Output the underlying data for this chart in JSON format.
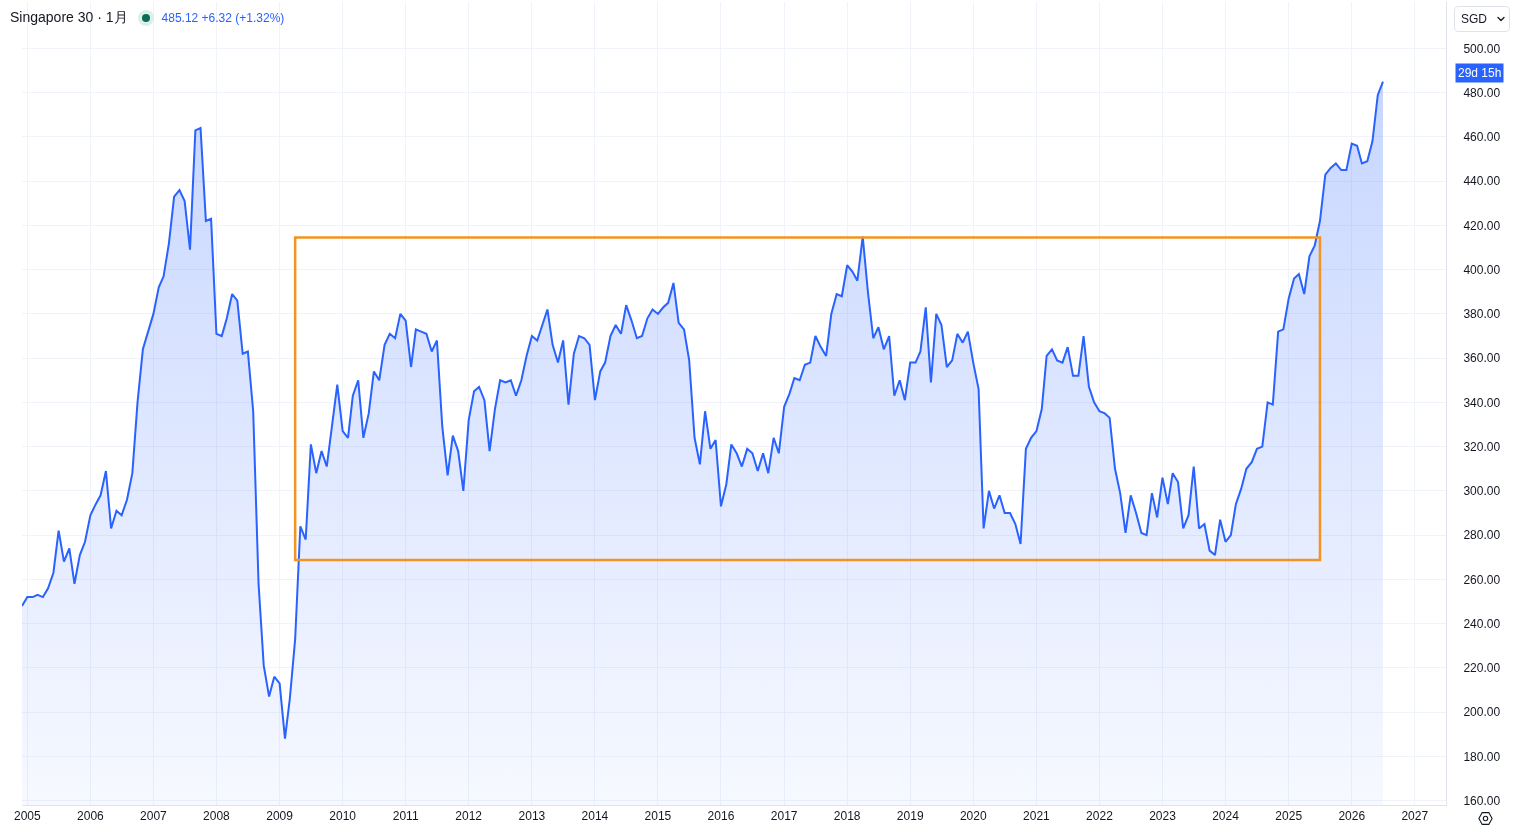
{
  "chart_data": {
    "type": "area",
    "title": "Singapore 30 · 1月",
    "subtitle": "485.12 +6.32 (+1.32%)",
    "ylabel": "SGD",
    "annotations": [
      "29d 15h"
    ],
    "x": [
      "2004-12",
      "2005-01",
      "2005-02",
      "2005-03",
      "2005-04",
      "2005-05",
      "2005-06",
      "2005-07",
      "2005-08",
      "2005-09",
      "2005-10",
      "2005-11",
      "2005-12",
      "2006-01",
      "2006-02",
      "2006-03",
      "2006-04",
      "2006-05",
      "2006-06",
      "2006-07",
      "2006-08",
      "2006-09",
      "2006-10",
      "2006-11",
      "2007-01",
      "2007-02",
      "2007-03",
      "2007-04",
      "2007-05",
      "2007-06",
      "2007-07",
      "2007-08",
      "2007-09",
      "2007-10",
      "2007-11",
      "2007-12",
      "2008-01",
      "2008-02",
      "2008-03",
      "2008-04",
      "2008-05",
      "2008-06",
      "2008-07",
      "2008-08",
      "2008-09",
      "2008-10",
      "2008-11",
      "2008-12",
      "2009-01",
      "2009-02",
      "2009-03",
      "2009-04",
      "2009-05",
      "2009-06",
      "2009-07",
      "2009-08",
      "2009-09",
      "2009-10",
      "2009-12",
      "2010-01",
      "2010-02",
      "2010-03",
      "2010-04",
      "2010-05",
      "2010-06",
      "2010-07",
      "2010-08",
      "2010-09",
      "2010-10",
      "2010-11",
      "2010-12",
      "2011-01",
      "2011-02",
      "2011-03",
      "2011-04",
      "2011-05",
      "2011-06",
      "2011-07",
      "2011-08",
      "2011-09",
      "2011-10",
      "2011-11",
      "2011-12",
      "2012-01",
      "2012-02",
      "2012-03",
      "2012-04",
      "2012-05",
      "2012-06",
      "2012-07",
      "2012-08",
      "2012-09",
      "2012-10",
      "2012-11",
      "2012-12",
      "2013-01",
      "2013-02",
      "2013-04",
      "2013-05",
      "2013-06",
      "2013-07",
      "2013-08",
      "2013-09",
      "2013-10",
      "2013-11",
      "2013-12",
      "2014-01",
      "2014-02",
      "2014-03",
      "2014-04",
      "2014-05",
      "2014-06",
      "2014-07",
      "2014-08",
      "2014-09",
      "2014-10",
      "2014-11",
      "2014-12",
      "2015-01",
      "2015-02",
      "2015-03",
      "2015-04",
      "2015-05",
      "2015-06",
      "2015-07",
      "2015-08",
      "2015-09",
      "2015-10",
      "2015-11",
      "2015-12",
      "2016-01",
      "2016-02",
      "2016-03",
      "2016-04",
      "2016-05",
      "2016-06",
      "2016-07",
      "2016-08",
      "2016-09",
      "2016-10",
      "2016-11",
      "2016-12",
      "2017-01",
      "2017-02",
      "2017-03",
      "2017-04",
      "2017-05",
      "2017-06",
      "2017-07",
      "2017-08",
      "2017-09",
      "2017-10",
      "2017-11",
      "2017-12",
      "2018-01",
      "2018-02",
      "2018-03",
      "2018-04",
      "2018-05",
      "2018-06",
      "2018-07",
      "2018-08",
      "2018-09",
      "2018-10",
      "2018-11",
      "2018-12",
      "2019-01",
      "2019-02",
      "2019-03",
      "2019-04",
      "2019-05",
      "2019-06",
      "2019-07",
      "2019-08",
      "2019-09",
      "2019-10",
      "2019-11",
      "2019-12",
      "2020-01",
      "2020-02",
      "2020-03",
      "2020-04",
      "2020-05",
      "2020-06",
      "2020-07",
      "2020-08",
      "2020-09",
      "2020-10",
      "2020-11",
      "2020-12",
      "2021-01",
      "2021-02",
      "2021-03",
      "2021-04",
      "2021-05",
      "2021-06",
      "2021-07",
      "2021-08",
      "2021-09",
      "2021-10",
      "2021-11",
      "2021-12",
      "2022-01",
      "2022-02",
      "2022-03",
      "2022-04",
      "2022-05",
      "2022-06",
      "2022-07",
      "2022-08",
      "2022-09",
      "2022-10",
      "2022-11",
      "2022-12",
      "2023-01",
      "2023-02",
      "2023-03",
      "2023-04",
      "2023-05",
      "2023-06",
      "2023-07",
      "2023-08",
      "2023-09",
      "2023-10",
      "2023-11",
      "2023-12",
      "2024-01",
      "2024-02",
      "2024-03",
      "2024-04",
      "2024-05",
      "2024-06",
      "2024-07",
      "2024-08",
      "2024-09",
      "2024-10",
      "2024-11",
      "2024-12",
      "2025-01",
      "2025-02",
      "2025-03",
      "2025-04",
      "2025-05",
      "2025-06",
      "2025-07",
      "2025-08",
      "2025-09",
      "2025-10",
      "2025-11",
      "2025-12",
      "2026-01",
      "2026-02",
      "2026-03",
      "2026-04",
      "2026-05",
      "2026-06",
      "2026-07"
    ],
    "series": [
      {
        "color": "#2962ff",
        "values": [
          248,
          252,
          252,
          253,
          252,
          256,
          263,
          282,
          268,
          274,
          258,
          271,
          277,
          289,
          294,
          298,
          309,
          283,
          291,
          289,
          296,
          308,
          340,
          364,
          380,
          392,
          397,
          412,
          433,
          436,
          431,
          409,
          463,
          464,
          422,
          423,
          371,
          370,
          378,
          389,
          386,
          362,
          363,
          336,
          258,
          221,
          207,
          216,
          213,
          188,
          206,
          233,
          284,
          278,
          321,
          308,
          318,
          311,
          348,
          327,
          324,
          343,
          350,
          324,
          335,
          354,
          350,
          366,
          371,
          369,
          380,
          377,
          356,
          373,
          372,
          371,
          363,
          368,
          329,
          307,
          325,
          318,
          300,
          332,
          345,
          347,
          341,
          318,
          337,
          350,
          349,
          350,
          343,
          350,
          361,
          370,
          368,
          382,
          366,
          358,
          368,
          339,
          362,
          370,
          369,
          366,
          341,
          354,
          358,
          370,
          375,
          371,
          384,
          377,
          369,
          370,
          378,
          382,
          380,
          383,
          385,
          394,
          376,
          373,
          359,
          324,
          312,
          336,
          319,
          323,
          293,
          303,
          321,
          317,
          311,
          319,
          317,
          309,
          317,
          308,
          324,
          317,
          338,
          344,
          351,
          350,
          357,
          358,
          370,
          365,
          361,
          380,
          389,
          388,
          402,
          399,
          395,
          415,
          390,
          369,
          374,
          364,
          370,
          343,
          350,
          341,
          358,
          358,
          363,
          383,
          349,
          380,
          375,
          356,
          359,
          371,
          367,
          372,
          358,
          346,
          283,
          300,
          292,
          298,
          290,
          290,
          285,
          276,
          319,
          324,
          327,
          337,
          361,
          364,
          359,
          358,
          365,
          352,
          352,
          370,
          347,
          340,
          336,
          335,
          333,
          310,
          299,
          281,
          298,
          290,
          281,
          280,
          299,
          288,
          306,
          294,
          308,
          304,
          283,
          289,
          311,
          283,
          285,
          273,
          271,
          287,
          277,
          280,
          294,
          301,
          310,
          313,
          319,
          320,
          340,
          339,
          372,
          373,
          387,
          396,
          398,
          389,
          406,
          411,
          422,
          443,
          446,
          448,
          445,
          445,
          457,
          456,
          448,
          449,
          458,
          479,
          485
        ]
      }
    ],
    "xlim": [
      "2004-12",
      "2027-07"
    ],
    "xticks": [
      "2005",
      "2006",
      "2007",
      "2008",
      "2009",
      "2010",
      "2011",
      "2012",
      "2013",
      "2014",
      "2015",
      "2016",
      "2017",
      "2018",
      "2019",
      "2020",
      "2021",
      "2022",
      "2023",
      "2024",
      "2025",
      "2026",
      "2027"
    ],
    "ylim": [
      158,
      521
    ],
    "yticks": [
      {
        "value": 160,
        "label": "160.00"
      },
      {
        "value": 180,
        "label": "180.00"
      },
      {
        "value": 200,
        "label": "200.00"
      },
      {
        "value": 220,
        "label": "220.00"
      },
      {
        "value": 240,
        "label": "240.00"
      },
      {
        "value": 260,
        "label": "260.00"
      },
      {
        "value": 280,
        "label": "280.00"
      },
      {
        "value": 300,
        "label": "300.00"
      },
      {
        "value": 320,
        "label": "320.00"
      },
      {
        "value": 340,
        "label": "340.00"
      },
      {
        "value": 360,
        "label": "360.00"
      },
      {
        "value": 380,
        "label": "380.00"
      },
      {
        "value": 400,
        "label": "400.00"
      },
      {
        "value": 420,
        "label": "420.00"
      },
      {
        "value": 440,
        "label": "440.00"
      },
      {
        "value": 460,
        "label": "460.00"
      },
      {
        "value": 480,
        "label": "480.00"
      },
      {
        "value": 500,
        "label": "500.00"
      }
    ],
    "grid": true
  }
}
